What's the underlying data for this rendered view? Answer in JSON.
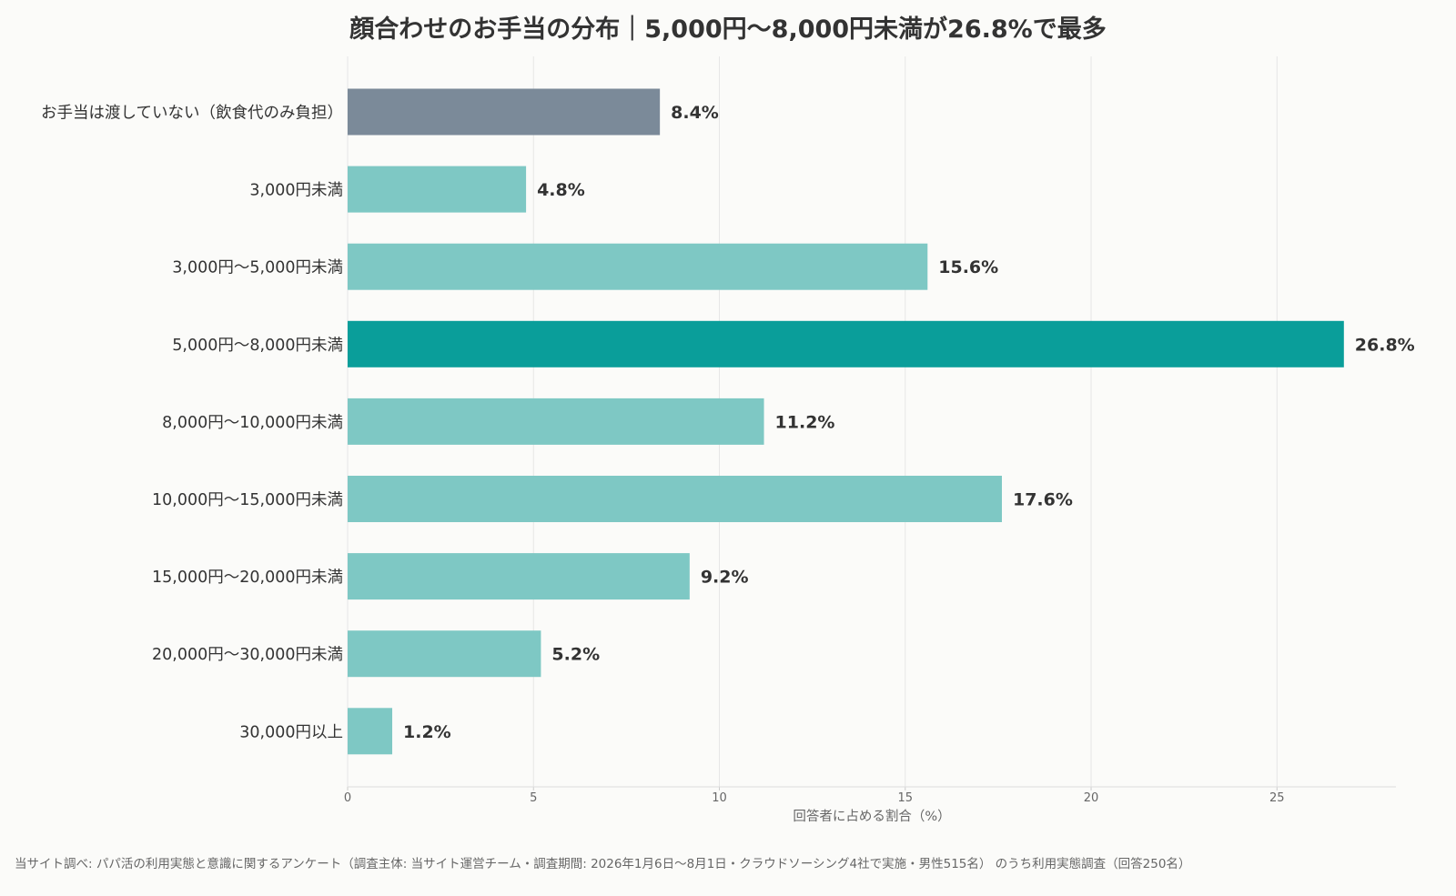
{
  "chart_data": {
    "type": "bar",
    "orientation": "horizontal",
    "title": "顔合わせのお手当の分布｜5,000円〜8,000円未満が26.8%で最多",
    "xlabel": "回答者に占める割合（%）",
    "ylabel": "",
    "xlim": [
      0,
      28.2
    ],
    "xticks": [
      0,
      5,
      10,
      15,
      20,
      25
    ],
    "grid": "vertical",
    "legend": "none",
    "categories": [
      "お手当は渡していない（飲食代のみ負担）",
      "3,000円未満",
      "3,000円〜5,000円未満",
      "5,000円〜8,000円未満",
      "8,000円〜10,000円未満",
      "10,000円〜15,000円未満",
      "15,000円〜20,000円未満",
      "20,000円〜30,000円未満",
      "30,000円以上"
    ],
    "values": [
      8.4,
      4.8,
      15.6,
      26.8,
      11.2,
      17.6,
      9.2,
      5.2,
      1.2
    ],
    "value_labels": [
      "8.4%",
      "4.8%",
      "15.6%",
      "26.8%",
      "11.2%",
      "17.6%",
      "9.2%",
      "5.2%",
      "1.2%"
    ],
    "bar_colors": [
      "#7b8a99",
      "#7ec8c4",
      "#7ec8c4",
      "#0a9e9a",
      "#7ec8c4",
      "#7ec8c4",
      "#7ec8c4",
      "#7ec8c4",
      "#7ec8c4"
    ]
  },
  "footnote": "当サイト調べ: パパ活の利用実態と意識に関するアンケート（調査主体: 当サイト運営チーム・調査期間: 2026年1月6日〜8月1日・クラウドソーシング4社で実施・男性515名） のうち利用実態調査（回答250名）",
  "colors": {
    "text": "#333333",
    "axis_text": "#666666",
    "grid": "#e6e6e6",
    "background": "#fbfbf9"
  }
}
